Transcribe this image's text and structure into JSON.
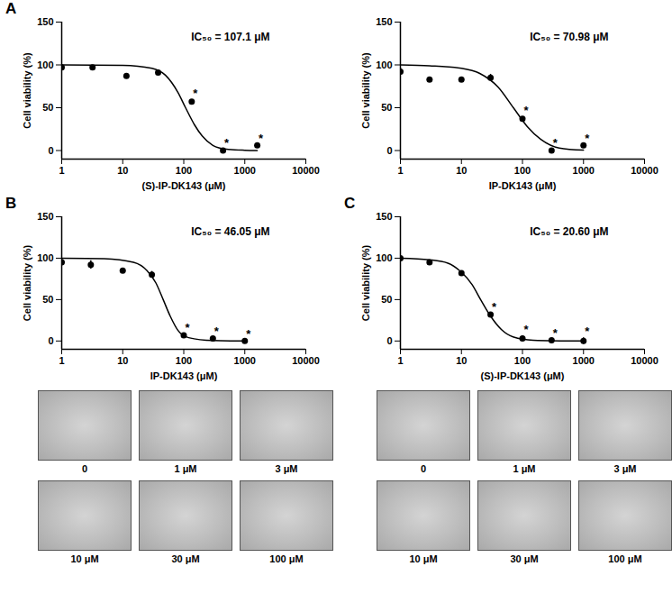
{
  "chart_data": [
    {
      "panel": "A",
      "type": "scatter",
      "x_label": "(S)-IP-DK143 (μM)",
      "y_label": "Cell viability (%)",
      "annotation": "IC₅₀ = 107.1 μM",
      "color": "#000000",
      "log": "x",
      "xlim": [
        1,
        10000
      ],
      "xticks": [
        1,
        10,
        100,
        1000,
        10000
      ],
      "ylim": [
        -10,
        150
      ],
      "yticks": [
        0,
        50,
        100,
        150
      ],
      "x": [
        1,
        3.2,
        11.5,
        38,
        135,
        440,
        1600
      ],
      "values": [
        97,
        97,
        87,
        91,
        57,
        0,
        6
      ],
      "errors": [
        3,
        1,
        1,
        1,
        2,
        1,
        1
      ],
      "significance": [
        null,
        null,
        null,
        null,
        "*",
        "*",
        "*"
      ],
      "fit": {
        "x": [
          1,
          10,
          30,
          50,
          80,
          107,
          150,
          200,
          300,
          500,
          1000,
          1600
        ],
        "values": [
          100,
          99.5,
          96,
          88,
          68,
          50,
          30,
          17,
          6,
          1.5,
          0.3,
          0
        ]
      }
    },
    {
      "type": "scatter",
      "x_label": "IP-DK143 (μM)",
      "y_label": "Cell viability (%)",
      "annotation": "IC₅₀ = 70.98 μM",
      "color": "#000000",
      "log": "x",
      "xlim": [
        1,
        10000
      ],
      "xticks": [
        1,
        10,
        100,
        1000,
        10000
      ],
      "ylim": [
        -10,
        150
      ],
      "yticks": [
        0,
        50,
        100,
        150
      ],
      "x": [
        1,
        3,
        10,
        30,
        100,
        300,
        1000
      ],
      "values": [
        92,
        83,
        83,
        85,
        37,
        0,
        6
      ],
      "errors": [
        4,
        1,
        1,
        4,
        2,
        1,
        1
      ],
      "significance": [
        null,
        null,
        null,
        null,
        "*",
        "*",
        "*"
      ],
      "fit": {
        "x": [
          1,
          3,
          10,
          20,
          40,
          71,
          120,
          200,
          400,
          1000
        ],
        "values": [
          100,
          99,
          96,
          90,
          74,
          50,
          28,
          13,
          3,
          0.5
        ]
      }
    },
    {
      "panel": "B",
      "type": "scatter",
      "x_label": "IP-DK143 (μM)",
      "y_label": "Cell viability (%)",
      "annotation": "IC₅₀ = 46.05 μM",
      "color": "#000000",
      "log": "x",
      "xlim": [
        1,
        10000
      ],
      "xticks": [
        1,
        10,
        100,
        1000,
        10000
      ],
      "ylim": [
        -10,
        150
      ],
      "yticks": [
        0,
        50,
        100,
        150
      ],
      "x": [
        1,
        3,
        10,
        30,
        100,
        300,
        1000
      ],
      "values": [
        95,
        92,
        85,
        80,
        7,
        3,
        0
      ],
      "errors": [
        4,
        5,
        1,
        4,
        1,
        1,
        1
      ],
      "significance": [
        null,
        null,
        null,
        null,
        "*",
        "*",
        "*"
      ],
      "fit": {
        "x": [
          1,
          5,
          15,
          25,
          35,
          46,
          60,
          80,
          120,
          300,
          1000
        ],
        "values": [
          100,
          99.5,
          95,
          85,
          70,
          50,
          30,
          13,
          4,
          0.5,
          0
        ]
      },
      "micrograph_labels": [
        "0",
        "1 μM",
        "3 μM",
        "10 μM",
        "30 μM",
        "100 μM"
      ]
    },
    {
      "panel": "C",
      "type": "scatter",
      "x_label": "(S)-IP-DK143 (μM)",
      "y_label": "Cell viability (%)",
      "annotation": "IC₅₀ = 20.60 μM",
      "color": "#000000",
      "log": "x",
      "xlim": [
        1,
        10000
      ],
      "xticks": [
        1,
        10,
        100,
        1000,
        10000
      ],
      "ylim": [
        -10,
        150
      ],
      "yticks": [
        0,
        50,
        100,
        150
      ],
      "x": [
        1,
        3,
        10,
        30,
        100,
        300,
        1000
      ],
      "values": [
        100,
        95,
        82,
        32,
        3,
        1,
        0
      ],
      "errors": [
        1,
        1,
        1,
        1,
        3,
        1,
        4
      ],
      "significance": [
        null,
        null,
        null,
        "*",
        "*",
        "*",
        "*"
      ],
      "fit": {
        "x": [
          1,
          3,
          6,
          10,
          15,
          20.6,
          30,
          45,
          70,
          150,
          1000
        ],
        "values": [
          100,
          98,
          94,
          83,
          68,
          50,
          30,
          14,
          5,
          1,
          0
        ]
      },
      "micrograph_labels": [
        "0",
        "1 μM",
        "3 μM",
        "10 μM",
        "30 μM",
        "100 μM"
      ]
    }
  ]
}
